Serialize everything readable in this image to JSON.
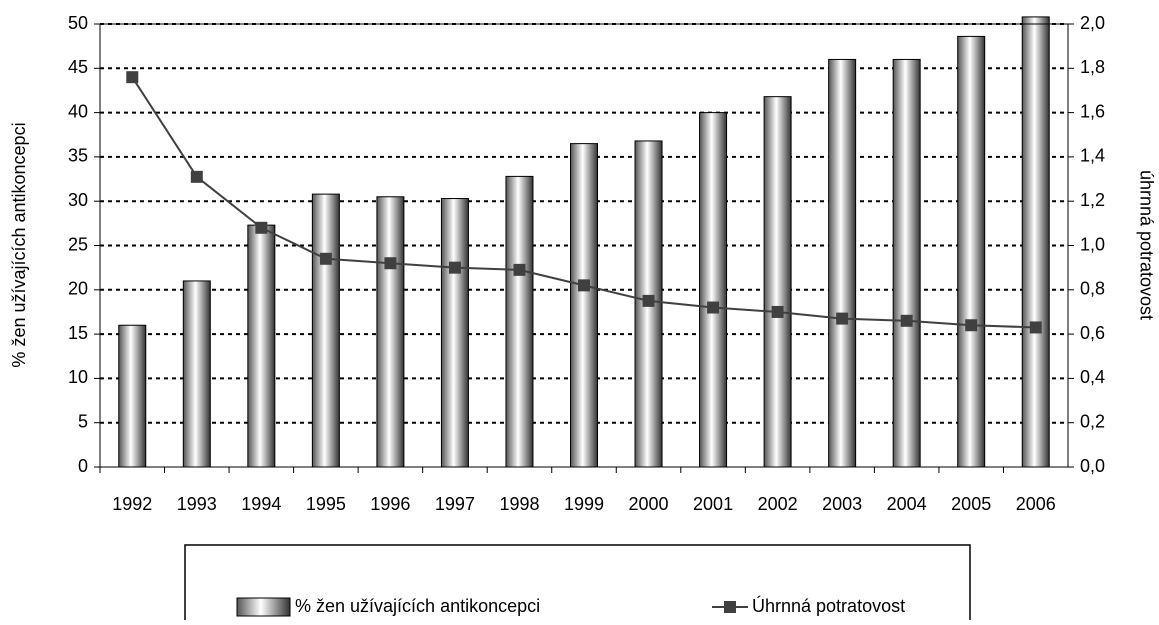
{
  "chart_data": {
    "type": "bar-line",
    "y_label": "% žen užívajících antikoncepci",
    "y2_label": "úhrnná potratovost",
    "categories": [
      "1992",
      "1993",
      "1994",
      "1995",
      "1996",
      "1997",
      "1998",
      "1999",
      "2000",
      "2001",
      "2002",
      "2003",
      "2004",
      "2005",
      "2006"
    ],
    "series": [
      {
        "name": "% žen užívajících antikoncepci",
        "type": "bar",
        "color": "#808080",
        "values": [
          16,
          21,
          27.3,
          30.8,
          30.5,
          30.3,
          32.8,
          36.5,
          36.8,
          40,
          41.8,
          46,
          46,
          48.6,
          50.8
        ]
      },
      {
        "name": "Úhrnná potratovost",
        "type": "line",
        "axis": "y2",
        "color": "#404040",
        "values": [
          1.76,
          1.31,
          1.08,
          0.94,
          0.92,
          0.9,
          0.89,
          0.82,
          0.75,
          0.72,
          0.7,
          0.67,
          0.66,
          0.64,
          0.63
        ]
      }
    ],
    "ylim": [
      0,
      50
    ],
    "yticks": [
      0,
      5,
      10,
      15,
      20,
      25,
      30,
      35,
      40,
      45,
      50
    ],
    "y2lim": [
      0,
      2
    ],
    "y2ticks": [
      {
        "value": 0,
        "label": "0,0"
      },
      {
        "value": 0.2,
        "label": "0,2"
      },
      {
        "value": 0.4,
        "label": "0,4"
      },
      {
        "value": 0.6,
        "label": "0,6"
      },
      {
        "value": 0.8,
        "label": "0,8"
      },
      {
        "value": 1.0,
        "label": "1,0"
      },
      {
        "value": 1.2,
        "label": "1,2"
      },
      {
        "value": 1.4,
        "label": "1,4"
      },
      {
        "value": 1.6,
        "label": "1,6"
      },
      {
        "value": 1.8,
        "label": "1,8"
      },
      {
        "value": 2.0,
        "label": "2,0"
      }
    ],
    "grid": true,
    "legend": "bottom"
  }
}
